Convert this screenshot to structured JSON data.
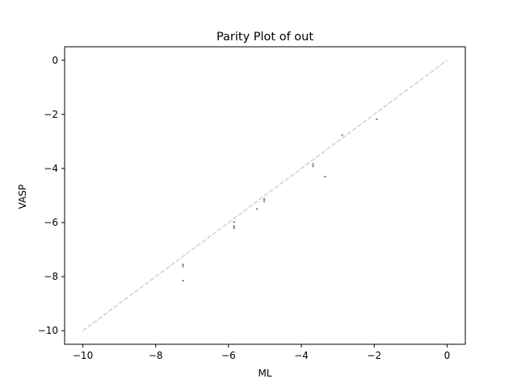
{
  "chart_data": {
    "type": "scatter",
    "title": "Parity Plot of out",
    "xlabel": "ML",
    "ylabel": "VASP",
    "xlim": [
      -10.5,
      0.5
    ],
    "ylim": [
      -10.5,
      0.5
    ],
    "x_ticks": [
      -10,
      -8,
      -6,
      -4,
      -2,
      0
    ],
    "y_ticks": [
      -10,
      -8,
      -6,
      -4,
      -2,
      0
    ],
    "x_tick_labels": [
      "−10",
      "−8",
      "−6",
      "−4",
      "−2",
      "0"
    ],
    "y_tick_labels": [
      "−10",
      "−8",
      "−6",
      "−4",
      "−2",
      "0"
    ],
    "grid": false,
    "legend": "none",
    "reference_line": {
      "x": [
        -10,
        0
      ],
      "y": [
        -10,
        0
      ],
      "style": "dashed",
      "color": "#d0d0d0"
    },
    "series": [
      {
        "color": "#1f77b4",
        "points": [
          {
            "x": -7.25,
            "y": -7.55
          },
          {
            "x": -7.25,
            "y": -7.62
          },
          {
            "x": -7.25,
            "y": -8.15
          },
          {
            "x": -5.85,
            "y": -5.98
          },
          {
            "x": -5.85,
            "y": -6.13
          },
          {
            "x": -5.85,
            "y": -6.2
          },
          {
            "x": -5.22,
            "y": -5.5
          },
          {
            "x": -5.02,
            "y": -5.13
          },
          {
            "x": -5.02,
            "y": -5.21
          },
          {
            "x": -3.68,
            "y": -3.84
          },
          {
            "x": -3.68,
            "y": -3.92
          },
          {
            "x": -3.35,
            "y": -4.3
          },
          {
            "x": -2.88,
            "y": -2.77
          },
          {
            "x": -1.93,
            "y": -2.18
          }
        ]
      }
    ]
  }
}
